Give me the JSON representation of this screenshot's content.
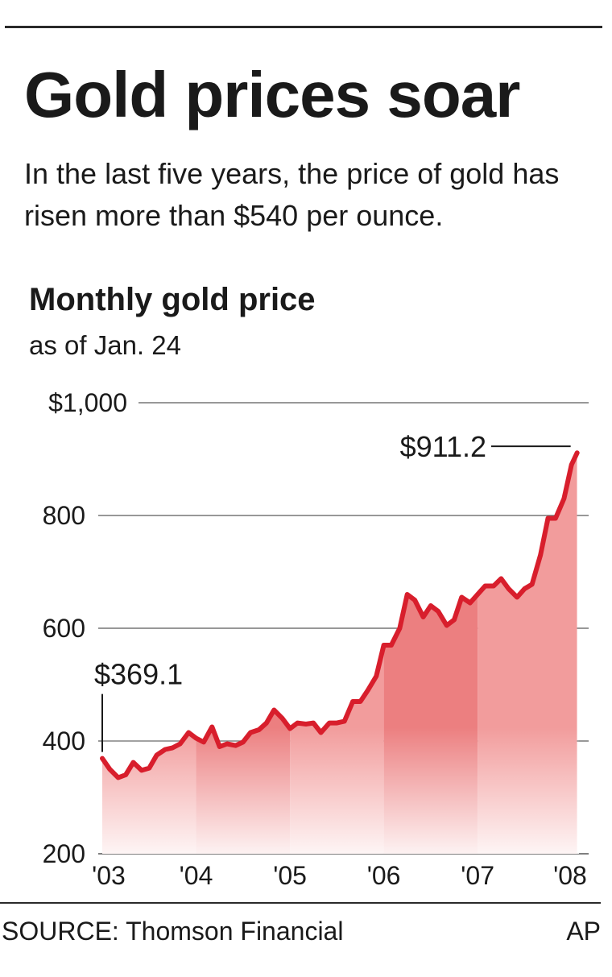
{
  "headline": "Gold prices soar",
  "subhead": "In the last five years, the price of gold has risen more than $540 per ounce.",
  "footer": {
    "source": "SOURCE: Thomson Financial",
    "credit": "AP"
  },
  "colors": {
    "line": "#d81e2c",
    "fill": "#f29c9c",
    "fill_alt": "#ec7f80",
    "grid": "#777777"
  },
  "chart_data": {
    "type": "area",
    "title": "Monthly gold price",
    "subtitle": "as of Jan. 24",
    "xlabel": "",
    "ylabel": "",
    "ylim": [
      200,
      1000
    ],
    "xlim": [
      2003.0,
      2008.08
    ],
    "grid": true,
    "y_ticks": [
      200,
      400,
      600,
      800,
      1000
    ],
    "y_tick_labels": [
      "200",
      "400",
      "600",
      "800",
      "$1,000"
    ],
    "x_ticks": [
      2003,
      2004,
      2005,
      2006,
      2007,
      2008
    ],
    "x_tick_labels": [
      "'03",
      "'04",
      "'05",
      "'06",
      "'07",
      "'08"
    ],
    "series": [
      {
        "x": [
          2003.0,
          2003.08,
          2003.17,
          2003.25,
          2003.33,
          2003.42,
          2003.5,
          2003.58,
          2003.67,
          2003.75,
          2003.83,
          2003.92,
          2004.0,
          2004.08,
          2004.17,
          2004.25,
          2004.33,
          2004.42,
          2004.5,
          2004.58,
          2004.67,
          2004.75,
          2004.83,
          2004.92,
          2005.0,
          2005.08,
          2005.17,
          2005.25,
          2005.33,
          2005.42,
          2005.5,
          2005.58,
          2005.67,
          2005.75,
          2005.83,
          2005.92,
          2006.0,
          2006.08,
          2006.17,
          2006.25,
          2006.33,
          2006.42,
          2006.5,
          2006.58,
          2006.67,
          2006.75,
          2006.83,
          2006.92,
          2007.0,
          2007.08,
          2007.17,
          2007.25,
          2007.33,
          2007.42,
          2007.5,
          2007.58,
          2007.67,
          2007.75,
          2007.83,
          2007.92,
          2008.0,
          2008.06
        ],
        "values": [
          369.1,
          350,
          335,
          340,
          362,
          348,
          352,
          375,
          385,
          388,
          395,
          415,
          405,
          398,
          425,
          390,
          395,
          392,
          398,
          415,
          420,
          432,
          455,
          440,
          422,
          432,
          430,
          432,
          415,
          432,
          432,
          435,
          470,
          470,
          490,
          515,
          570,
          570,
          600,
          660,
          650,
          620,
          640,
          630,
          605,
          615,
          655,
          645,
          660,
          675,
          675,
          688,
          670,
          655,
          670,
          678,
          730,
          795,
          795,
          830,
          890,
          911.2
        ]
      }
    ],
    "shading": [
      {
        "from": 2003.0,
        "to": 2004.0,
        "shade": "fill"
      },
      {
        "from": 2004.0,
        "to": 2005.0,
        "shade": "fill_alt"
      },
      {
        "from": 2005.0,
        "to": 2006.0,
        "shade": "fill"
      },
      {
        "from": 2006.0,
        "to": 2007.0,
        "shade": "fill_alt"
      },
      {
        "from": 2007.0,
        "to": 2008.06,
        "shade": "fill"
      }
    ],
    "annotations": [
      {
        "label": "$369.1",
        "x": 2003.0,
        "y": 369.1
      },
      {
        "label": "$911.2",
        "x": 2008.06,
        "y": 911.2
      }
    ]
  }
}
